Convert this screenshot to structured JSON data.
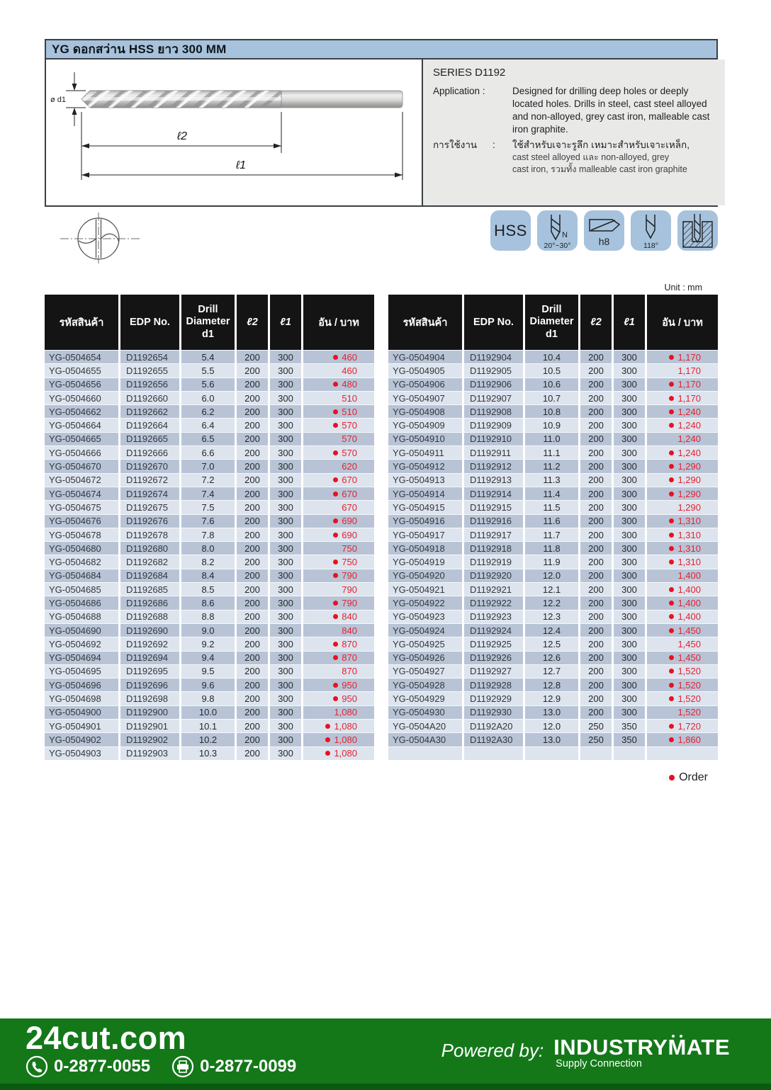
{
  "header": {
    "title": "YG ดอกสว่าน HSS  ยาว 300 MM"
  },
  "info": {
    "series": "SERIES D1192",
    "application_label": "Application :",
    "application_text": "Designed for drilling deep holes or deeply located holes. Drills in steel, cast steel alloyed and non-alloyed, grey cast iron, malleable cast iron graphite.",
    "usage_label": "การใช้งาน",
    "usage_colon": ":",
    "usage_line1": "ใช้สำหรับเจาะรูลึก  เหมาะสำหรับเจาะเหล็ก,",
    "usage_line2": "cast steel alloyed และ non-alloyed, grey",
    "usage_line3": "cast iron, รวมทั้ง malleable cast iron graphite"
  },
  "diagram": {
    "dia_label": "ø d1",
    "l2_label": "ℓ2",
    "l1_label": "ℓ1"
  },
  "badges": {
    "hss": "HSS",
    "helix_n": "N",
    "helix_angle": "20°~30°",
    "tolerance": "h8",
    "point_angle": "118°"
  },
  "unit_note": "Unit : mm",
  "table_headers": {
    "code": "รหัสสินค้า",
    "edp": "EDP No.",
    "d1": "Drill\nDiameter\nd1",
    "l2": "ℓ2",
    "l1": "ℓ1",
    "price": "อัน / บาท"
  },
  "order_legend": "Order",
  "accent_colors": {
    "row_dark": "#b8c4d6",
    "row_light": "#dde4ee",
    "price_red": "#e32330",
    "header_blue": "#a7c2dc",
    "footer_green": "#147819"
  },
  "tables": {
    "left": {
      "rows": [
        {
          "code": "YG-0504654",
          "edp": "D1192654",
          "d1": "5.4",
          "l2": "200",
          "l1": "300",
          "price": "460",
          "order": true
        },
        {
          "code": "YG-0504655",
          "edp": "D1192655",
          "d1": "5.5",
          "l2": "200",
          "l1": "300",
          "price": "460",
          "order": false
        },
        {
          "code": "YG-0504656",
          "edp": "D1192656",
          "d1": "5.6",
          "l2": "200",
          "l1": "300",
          "price": "480",
          "order": true
        },
        {
          "code": "YG-0504660",
          "edp": "D1192660",
          "d1": "6.0",
          "l2": "200",
          "l1": "300",
          "price": "510",
          "order": false
        },
        {
          "code": "YG-0504662",
          "edp": "D1192662",
          "d1": "6.2",
          "l2": "200",
          "l1": "300",
          "price": "510",
          "order": true
        },
        {
          "code": "YG-0504664",
          "edp": "D1192664",
          "d1": "6.4",
          "l2": "200",
          "l1": "300",
          "price": "570",
          "order": true
        },
        {
          "code": "YG-0504665",
          "edp": "D1192665",
          "d1": "6.5",
          "l2": "200",
          "l1": "300",
          "price": "570",
          "order": false
        },
        {
          "code": "YG-0504666",
          "edp": "D1192666",
          "d1": "6.6",
          "l2": "200",
          "l1": "300",
          "price": "570",
          "order": true
        },
        {
          "code": "YG-0504670",
          "edp": "D1192670",
          "d1": "7.0",
          "l2": "200",
          "l1": "300",
          "price": "620",
          "order": false
        },
        {
          "code": "YG-0504672",
          "edp": "D1192672",
          "d1": "7.2",
          "l2": "200",
          "l1": "300",
          "price": "670",
          "order": true
        },
        {
          "code": "YG-0504674",
          "edp": "D1192674",
          "d1": "7.4",
          "l2": "200",
          "l1": "300",
          "price": "670",
          "order": true
        },
        {
          "code": "YG-0504675",
          "edp": "D1192675",
          "d1": "7.5",
          "l2": "200",
          "l1": "300",
          "price": "670",
          "order": false
        },
        {
          "code": "YG-0504676",
          "edp": "D1192676",
          "d1": "7.6",
          "l2": "200",
          "l1": "300",
          "price": "690",
          "order": true
        },
        {
          "code": "YG-0504678",
          "edp": "D1192678",
          "d1": "7.8",
          "l2": "200",
          "l1": "300",
          "price": "690",
          "order": true
        },
        {
          "code": "YG-0504680",
          "edp": "D1192680",
          "d1": "8.0",
          "l2": "200",
          "l1": "300",
          "price": "750",
          "order": false
        },
        {
          "code": "YG-0504682",
          "edp": "D1192682",
          "d1": "8.2",
          "l2": "200",
          "l1": "300",
          "price": "750",
          "order": true
        },
        {
          "code": "YG-0504684",
          "edp": "D1192684",
          "d1": "8.4",
          "l2": "200",
          "l1": "300",
          "price": "790",
          "order": true
        },
        {
          "code": "YG-0504685",
          "edp": "D1192685",
          "d1": "8.5",
          "l2": "200",
          "l1": "300",
          "price": "790",
          "order": false
        },
        {
          "code": "YG-0504686",
          "edp": "D1192686",
          "d1": "8.6",
          "l2": "200",
          "l1": "300",
          "price": "790",
          "order": true
        },
        {
          "code": "YG-0504688",
          "edp": "D1192688",
          "d1": "8.8",
          "l2": "200",
          "l1": "300",
          "price": "840",
          "order": true
        },
        {
          "code": "YG-0504690",
          "edp": "D1192690",
          "d1": "9.0",
          "l2": "200",
          "l1": "300",
          "price": "840",
          "order": false
        },
        {
          "code": "YG-0504692",
          "edp": "D1192692",
          "d1": "9.2",
          "l2": "200",
          "l1": "300",
          "price": "870",
          "order": true
        },
        {
          "code": "YG-0504694",
          "edp": "D1192694",
          "d1": "9.4",
          "l2": "200",
          "l1": "300",
          "price": "870",
          "order": true
        },
        {
          "code": "YG-0504695",
          "edp": "D1192695",
          "d1": "9.5",
          "l2": "200",
          "l1": "300",
          "price": "870",
          "order": false
        },
        {
          "code": "YG-0504696",
          "edp": "D1192696",
          "d1": "9.6",
          "l2": "200",
          "l1": "300",
          "price": "950",
          "order": true
        },
        {
          "code": "YG-0504698",
          "edp": "D1192698",
          "d1": "9.8",
          "l2": "200",
          "l1": "300",
          "price": "950",
          "order": true
        },
        {
          "code": "YG-0504900",
          "edp": "D1192900",
          "d1": "10.0",
          "l2": "200",
          "l1": "300",
          "price": "1,080",
          "order": false
        },
        {
          "code": "YG-0504901",
          "edp": "D1192901",
          "d1": "10.1",
          "l2": "200",
          "l1": "300",
          "price": "1,080",
          "order": true
        },
        {
          "code": "YG-0504902",
          "edp": "D1192902",
          "d1": "10.2",
          "l2": "200",
          "l1": "300",
          "price": "1,080",
          "order": true
        },
        {
          "code": "YG-0504903",
          "edp": "D1192903",
          "d1": "10.3",
          "l2": "200",
          "l1": "300",
          "price": "1,080",
          "order": true
        }
      ]
    },
    "right": {
      "rows": [
        {
          "code": "YG-0504904",
          "edp": "D1192904",
          "d1": "10.4",
          "l2": "200",
          "l1": "300",
          "price": "1,170",
          "order": true
        },
        {
          "code": "YG-0504905",
          "edp": "D1192905",
          "d1": "10.5",
          "l2": "200",
          "l1": "300",
          "price": "1,170",
          "order": false
        },
        {
          "code": "YG-0504906",
          "edp": "D1192906",
          "d1": "10.6",
          "l2": "200",
          "l1": "300",
          "price": "1,170",
          "order": true
        },
        {
          "code": "YG-0504907",
          "edp": "D1192907",
          "d1": "10.7",
          "l2": "200",
          "l1": "300",
          "price": "1,170",
          "order": true
        },
        {
          "code": "YG-0504908",
          "edp": "D1192908",
          "d1": "10.8",
          "l2": "200",
          "l1": "300",
          "price": "1,240",
          "order": true
        },
        {
          "code": "YG-0504909",
          "edp": "D1192909",
          "d1": "10.9",
          "l2": "200",
          "l1": "300",
          "price": "1,240",
          "order": true
        },
        {
          "code": "YG-0504910",
          "edp": "D1192910",
          "d1": "11.0",
          "l2": "200",
          "l1": "300",
          "price": "1,240",
          "order": false
        },
        {
          "code": "YG-0504911",
          "edp": "D1192911",
          "d1": "11.1",
          "l2": "200",
          "l1": "300",
          "price": "1,240",
          "order": true
        },
        {
          "code": "YG-0504912",
          "edp": "D1192912",
          "d1": "11.2",
          "l2": "200",
          "l1": "300",
          "price": "1,290",
          "order": true
        },
        {
          "code": "YG-0504913",
          "edp": "D1192913",
          "d1": "11.3",
          "l2": "200",
          "l1": "300",
          "price": "1,290",
          "order": true
        },
        {
          "code": "YG-0504914",
          "edp": "D1192914",
          "d1": "11.4",
          "l2": "200",
          "l1": "300",
          "price": "1,290",
          "order": true
        },
        {
          "code": "YG-0504915",
          "edp": "D1192915",
          "d1": "11.5",
          "l2": "200",
          "l1": "300",
          "price": "1,290",
          "order": false
        },
        {
          "code": "YG-0504916",
          "edp": "D1192916",
          "d1": "11.6",
          "l2": "200",
          "l1": "300",
          "price": "1,310",
          "order": true
        },
        {
          "code": "YG-0504917",
          "edp": "D1192917",
          "d1": "11.7",
          "l2": "200",
          "l1": "300",
          "price": "1,310",
          "order": true
        },
        {
          "code": "YG-0504918",
          "edp": "D1192918",
          "d1": "11.8",
          "l2": "200",
          "l1": "300",
          "price": "1,310",
          "order": true
        },
        {
          "code": "YG-0504919",
          "edp": "D1192919",
          "d1": "11.9",
          "l2": "200",
          "l1": "300",
          "price": "1,310",
          "order": true
        },
        {
          "code": "YG-0504920",
          "edp": "D1192920",
          "d1": "12.0",
          "l2": "200",
          "l1": "300",
          "price": "1,400",
          "order": false
        },
        {
          "code": "YG-0504921",
          "edp": "D1192921",
          "d1": "12.1",
          "l2": "200",
          "l1": "300",
          "price": "1,400",
          "order": true
        },
        {
          "code": "YG-0504922",
          "edp": "D1192922",
          "d1": "12.2",
          "l2": "200",
          "l1": "300",
          "price": "1,400",
          "order": true
        },
        {
          "code": "YG-0504923",
          "edp": "D1192923",
          "d1": "12.3",
          "l2": "200",
          "l1": "300",
          "price": "1,400",
          "order": true
        },
        {
          "code": "YG-0504924",
          "edp": "D1192924",
          "d1": "12.4",
          "l2": "200",
          "l1": "300",
          "price": "1,450",
          "order": true
        },
        {
          "code": "YG-0504925",
          "edp": "D1192925",
          "d1": "12.5",
          "l2": "200",
          "l1": "300",
          "price": "1,450",
          "order": false
        },
        {
          "code": "YG-0504926",
          "edp": "D1192926",
          "d1": "12.6",
          "l2": "200",
          "l1": "300",
          "price": "1,450",
          "order": true
        },
        {
          "code": "YG-0504927",
          "edp": "D1192927",
          "d1": "12.7",
          "l2": "200",
          "l1": "300",
          "price": "1,520",
          "order": true
        },
        {
          "code": "YG-0504928",
          "edp": "D1192928",
          "d1": "12.8",
          "l2": "200",
          "l1": "300",
          "price": "1,520",
          "order": true
        },
        {
          "code": "YG-0504929",
          "edp": "D1192929",
          "d1": "12.9",
          "l2": "200",
          "l1": "300",
          "price": "1,520",
          "order": true
        },
        {
          "code": "YG-0504930",
          "edp": "D1192930",
          "d1": "13.0",
          "l2": "200",
          "l1": "300",
          "price": "1,520",
          "order": false
        },
        {
          "code": "YG-0504A20",
          "edp": "D1192A20",
          "d1": "12.0",
          "l2": "250",
          "l1": "350",
          "price": "1,720",
          "order": true
        },
        {
          "code": "YG-0504A30",
          "edp": "D1192A30",
          "d1": "13.0",
          "l2": "250",
          "l1": "350",
          "price": "1,860",
          "order": true
        },
        {
          "code": "",
          "edp": "",
          "d1": "",
          "l2": "",
          "l1": "",
          "price": "",
          "order": false
        }
      ]
    }
  },
  "footer": {
    "site": "24cut.com",
    "phone": "0-2877-0055",
    "fax": "0-2877-0099",
    "powered_by": "Powered by:",
    "brand": "INDUSTRYMATE",
    "brand_sub": "Supply Connection"
  }
}
